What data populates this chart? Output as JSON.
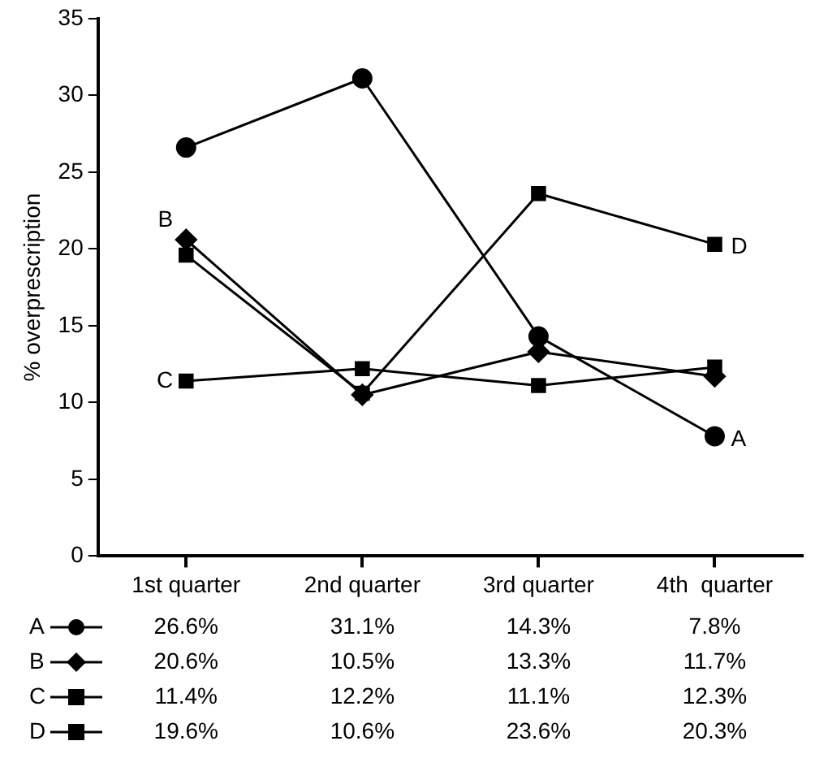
{
  "chart_data": {
    "type": "line",
    "ylabel": "% overprescription",
    "categories": [
      "1st quarter",
      "2nd quarter",
      "3rd quarter",
      "4th  quarter"
    ],
    "ylim": [
      0,
      35
    ],
    "yticks": [
      0,
      5,
      10,
      15,
      20,
      25,
      30,
      35
    ],
    "grid": false,
    "legend": "bottom left",
    "line_style": "solid",
    "series": [
      {
        "name": "A",
        "color": "#000000",
        "marker": "circle",
        "values": [
          26.6,
          31.1,
          14.3,
          7.8
        ],
        "value_labels": [
          "26.6%",
          "31.1%",
          "14.3%",
          "7.8%"
        ]
      },
      {
        "name": "B",
        "color": "#000000",
        "marker": "diamond",
        "values": [
          20.6,
          10.5,
          13.3,
          11.7
        ],
        "value_labels": [
          "20.6%",
          "10.5%",
          "13.3%",
          "11.7%"
        ]
      },
      {
        "name": "C",
        "color": "#000000",
        "marker": "square",
        "values": [
          11.4,
          12.2,
          11.1,
          12.3
        ],
        "value_labels": [
          "11.4%",
          "12.2%",
          "11.1%",
          "12.3%"
        ]
      },
      {
        "name": "D",
        "color": "#000000",
        "marker": "square",
        "values": [
          19.6,
          10.6,
          23.6,
          20.3
        ],
        "value_labels": [
          "19.6%",
          "10.6%",
          "23.6%",
          "20.3%"
        ]
      }
    ]
  }
}
